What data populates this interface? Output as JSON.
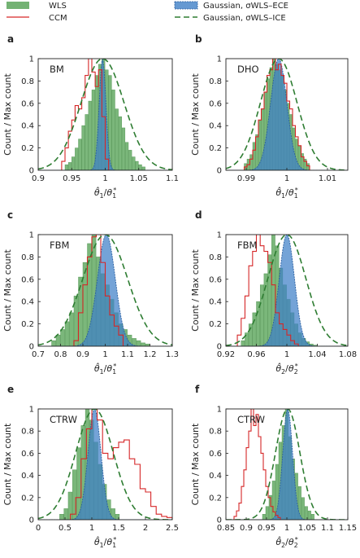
{
  "legend": [
    {
      "key": "wls",
      "label": "WLS",
      "color": "#5aa55a"
    },
    {
      "key": "ccm",
      "label": "CCM",
      "color": "#d62728"
    },
    {
      "key": "gece",
      "label": "Gaussian, σWLS–ECE",
      "color": "#3f7fc7"
    },
    {
      "key": "gice",
      "label": "Gaussian, σWLS–ICE",
      "color": "#2e7d32"
    }
  ],
  "ylabel": "Count / Max count",
  "chart_data": [
    {
      "type": "bar",
      "panel": "a",
      "title": "BM",
      "xlabel": "θ̂1/θ1*",
      "xlim": [
        0.9,
        1.1
      ],
      "ylim": [
        0,
        1
      ],
      "xticks": [
        0.9,
        0.95,
        1,
        1.05,
        1.1
      ],
      "xtick_labels": [
        "0.9",
        "0.95",
        "1",
        "1.05",
        "1.1"
      ],
      "yticks": [
        0,
        0.2,
        0.4,
        0.6,
        0.8,
        1
      ],
      "ytick_labels": [
        "0",
        "0.2",
        "0.4",
        "0.6",
        "0.8",
        "1"
      ],
      "gauss_ece": {
        "mu": 0.996,
        "sigma": 0.005
      },
      "gauss_ice": {
        "mu": 0.996,
        "sigma": 0.032
      },
      "wls": {
        "start": 0.94,
        "width": 0.005,
        "values": [
          0.05,
          0.07,
          0.12,
          0.2,
          0.28,
          0.4,
          0.5,
          0.62,
          0.72,
          0.85,
          0.95,
          1.0,
          0.9,
          0.85,
          0.72,
          0.55,
          0.48,
          0.38,
          0.25,
          0.18,
          0.12,
          0.08,
          0.05,
          0.03
        ]
      },
      "ccm": {
        "start": 0.935,
        "width": 0.005,
        "values": [
          0.08,
          0.2,
          0.35,
          0.45,
          0.58,
          0.55,
          0.65,
          0.85,
          1.0,
          0.88,
          0.75,
          0.9,
          0.48,
          0.1
        ]
      }
    },
    {
      "type": "bar",
      "panel": "b",
      "title": "DHO",
      "xlabel": "θ̂1/θ1*",
      "xlim": [
        0.985,
        1.015
      ],
      "ylim": [
        0,
        1
      ],
      "xticks": [
        0.99,
        1,
        1.01
      ],
      "xtick_labels": [
        "0.99",
        "1",
        "1.01"
      ],
      "yticks": [
        0,
        0.2,
        0.4,
        0.6,
        0.8,
        1
      ],
      "ytick_labels": [
        "0",
        "0.2",
        "0.4",
        "0.6",
        "0.8",
        "1"
      ],
      "gauss_ece": {
        "mu": 0.998,
        "sigma": 0.002
      },
      "gauss_ice": {
        "mu": 0.998,
        "sigma": 0.0045
      },
      "wls": {
        "start": 0.9895,
        "width": 0.0007,
        "values": [
          0.06,
          0.1,
          0.14,
          0.25,
          0.32,
          0.45,
          0.55,
          0.7,
          0.82,
          0.92,
          1.0,
          0.95,
          0.9,
          0.85,
          0.72,
          0.6,
          0.5,
          0.38,
          0.28,
          0.22,
          0.15,
          0.1,
          0.06
        ]
      },
      "ccm": {
        "start": 0.9895,
        "width": 0.0007,
        "values": [
          0.03,
          0.05,
          0.1,
          0.18,
          0.3,
          0.45,
          0.55,
          0.7,
          0.85,
          0.9,
          1.0,
          0.9,
          0.95,
          0.85,
          0.78,
          0.62,
          0.55,
          0.4,
          0.3,
          0.22,
          0.12,
          0.08,
          0.04
        ]
      }
    },
    {
      "type": "bar",
      "panel": "c",
      "title": "FBM",
      "xlabel": "θ̂1/θ1*",
      "xlim": [
        0.7,
        1.3
      ],
      "ylim": [
        0,
        1
      ],
      "xticks": [
        0.7,
        0.8,
        0.9,
        1,
        1.1,
        1.2,
        1.3
      ],
      "xtick_labels": [
        "0.7",
        "0.8",
        "0.9",
        "1",
        "1.1",
        "1.2",
        "1.3"
      ],
      "yticks": [
        0,
        0.2,
        0.4,
        0.6,
        0.8,
        1
      ],
      "ytick_labels": [
        "0",
        "0.2",
        "0.4",
        "0.6",
        "0.8",
        "1"
      ],
      "gauss_ece": {
        "mu": 1.005,
        "sigma": 0.04
      },
      "gauss_ice": {
        "mu": 1.0,
        "sigma": 0.1
      },
      "wls": {
        "start": 0.76,
        "width": 0.02,
        "values": [
          0.05,
          0.1,
          0.15,
          0.22,
          0.3,
          0.45,
          0.62,
          0.75,
          0.92,
          1.0,
          0.8,
          0.65,
          0.55,
          0.42,
          0.3,
          0.2,
          0.15,
          0.1,
          0.07,
          0.05,
          0.03,
          0.02
        ]
      },
      "ccm": {
        "start": 0.86,
        "width": 0.02,
        "values": [
          0.05,
          0.3,
          0.55,
          0.8,
          0.98,
          1.0,
          0.75,
          0.45,
          0.28,
          0.18,
          0.1
        ]
      }
    },
    {
      "type": "bar",
      "panel": "d",
      "title": "FBM",
      "xlabel": "θ̂2/θ2*",
      "xlim": [
        0.92,
        1.08
      ],
      "ylim": [
        0,
        1
      ],
      "xticks": [
        0.92,
        0.96,
        1,
        1.04,
        1.08
      ],
      "xtick_labels": [
        "0.92",
        "0.96",
        "1",
        "1.04",
        "1.08"
      ],
      "yticks": [
        0,
        0.2,
        0.4,
        0.6,
        0.8,
        1
      ],
      "ytick_labels": [
        "0",
        "0.2",
        "0.4",
        "0.6",
        "0.8",
        "1"
      ],
      "gauss_ece": {
        "mu": 1.0,
        "sigma": 0.01
      },
      "gauss_ice": {
        "mu": 1.0,
        "sigma": 0.025
      },
      "wls": {
        "start": 0.94,
        "width": 0.005,
        "values": [
          0.05,
          0.12,
          0.2,
          0.3,
          0.4,
          0.55,
          0.65,
          0.82,
          1.0,
          0.9,
          0.7,
          0.55,
          0.42,
          0.3,
          0.2,
          0.12,
          0.07,
          0.04,
          0.02,
          0.01
        ]
      },
      "ccm": {
        "start": 0.935,
        "width": 0.005,
        "values": [
          0.1,
          0.25,
          0.45,
          0.72,
          0.85,
          1.0,
          0.9,
          0.85,
          0.75,
          0.55,
          0.3,
          0.2,
          0.15,
          0.1,
          0.05,
          0.02
        ]
      }
    },
    {
      "type": "bar",
      "panel": "e",
      "title": "CTRW",
      "xlabel": "θ̂1/θ1*",
      "xlim": [
        0,
        2.5
      ],
      "ylim": [
        0,
        1
      ],
      "xticks": [
        0,
        0.5,
        1,
        1.5,
        2,
        2.5
      ],
      "xtick_labels": [
        "0",
        "0.5",
        "1",
        "1.5",
        "2",
        "2.5"
      ],
      "yticks": [
        0,
        0.2,
        0.4,
        0.6,
        0.8,
        1
      ],
      "ytick_labels": [
        "0",
        "0.2",
        "0.4",
        "0.6",
        "0.8",
        "1"
      ],
      "gauss_ece": {
        "mu": 1.05,
        "sigma": 0.12
      },
      "gauss_ice": {
        "mu": 1.05,
        "sigma": 0.35
      },
      "wls": {
        "start": 0.4,
        "width": 0.08,
        "values": [
          0.05,
          0.1,
          0.25,
          0.45,
          0.65,
          0.85,
          1.0,
          0.9,
          0.7,
          0.5,
          0.32,
          0.18,
          0.1,
          0.05
        ]
      },
      "ccm": {
        "start": 0.6,
        "width": 0.1,
        "values": [
          0.05,
          0.2,
          0.55,
          0.82,
          1.0,
          0.9,
          0.6,
          0.55,
          0.65,
          0.7,
          0.72,
          0.55,
          0.5,
          0.28,
          0.25,
          0.12,
          0.05,
          0.03,
          0.02
        ]
      }
    },
    {
      "type": "bar",
      "panel": "f",
      "title": "CTRW",
      "xlabel": "θ̂2/θ2*",
      "xlim": [
        0.85,
        1.15
      ],
      "ylim": [
        0,
        1
      ],
      "xticks": [
        0.85,
        0.9,
        0.95,
        1,
        1.05,
        1.1,
        1.15
      ],
      "xtick_labels": [
        "0.85",
        "0.9",
        "0.95",
        "1",
        "1.05",
        "1.1",
        "1.15"
      ],
      "yticks": [
        0,
        0.2,
        0.4,
        0.6,
        0.8,
        1
      ],
      "ytick_labels": [
        "0",
        "0.2",
        "0.4",
        "0.6",
        "0.8",
        "1"
      ],
      "gauss_ece": {
        "mu": 1.002,
        "sigma": 0.012
      },
      "gauss_ice": {
        "mu": 1.002,
        "sigma": 0.03
      },
      "wls": {
        "start": 0.94,
        "width": 0.008,
        "values": [
          0.05,
          0.12,
          0.22,
          0.35,
          0.5,
          0.7,
          0.85,
          1.0,
          0.75,
          0.55,
          0.42,
          0.3,
          0.2,
          0.12,
          0.08,
          0.05
        ]
      },
      "ccm": {
        "start": 0.87,
        "width": 0.006,
        "values": [
          0.03,
          0.08,
          0.15,
          0.3,
          0.45,
          0.65,
          0.8,
          1.0,
          0.85,
          0.95,
          0.75,
          0.6,
          0.45,
          0.3,
          0.2,
          0.12,
          0.07,
          0.04,
          0.02
        ]
      }
    }
  ]
}
